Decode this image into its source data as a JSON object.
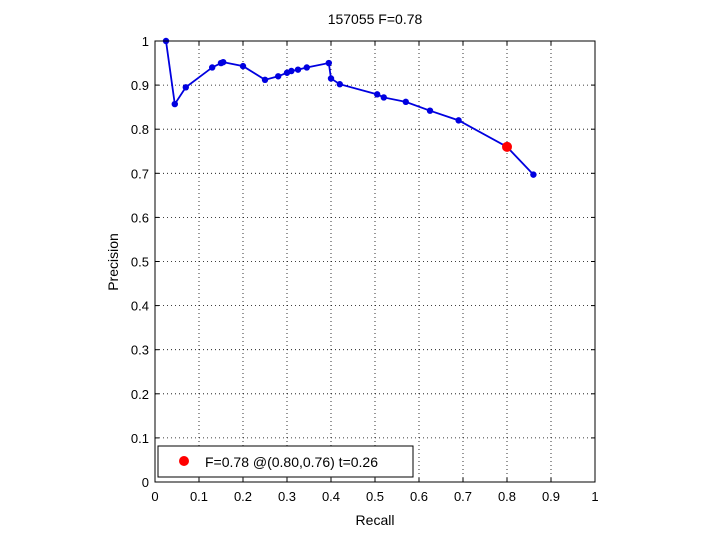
{
  "chart_data": {
    "type": "line",
    "title": "157055 F=0.78",
    "xlabel": "Recall",
    "ylabel": "Precision",
    "xlim": [
      0,
      1
    ],
    "ylim": [
      0,
      1
    ],
    "xticks": [
      "0",
      "0.1",
      "0.2",
      "0.3",
      "0.4",
      "0.5",
      "0.6",
      "0.7",
      "0.8",
      "0.9",
      "1"
    ],
    "yticks": [
      "0",
      "0.1",
      "0.2",
      "0.3",
      "0.4",
      "0.5",
      "0.6",
      "0.7",
      "0.8",
      "0.9",
      "1"
    ],
    "grid": true,
    "grid_style": "dotted",
    "series": [
      {
        "color": "#0000e0",
        "marker": "circle",
        "points": [
          [
            0.025,
            1.0
          ],
          [
            0.045,
            0.857
          ],
          [
            0.07,
            0.895
          ],
          [
            0.13,
            0.94
          ],
          [
            0.15,
            0.95
          ],
          [
            0.155,
            0.952
          ],
          [
            0.2,
            0.943
          ],
          [
            0.25,
            0.912
          ],
          [
            0.28,
            0.92
          ],
          [
            0.3,
            0.928
          ],
          [
            0.31,
            0.932
          ],
          [
            0.325,
            0.935
          ],
          [
            0.345,
            0.94
          ],
          [
            0.395,
            0.95
          ],
          [
            0.4,
            0.915
          ],
          [
            0.42,
            0.902
          ],
          [
            0.505,
            0.879
          ],
          [
            0.52,
            0.872
          ],
          [
            0.57,
            0.862
          ],
          [
            0.625,
            0.842
          ],
          [
            0.69,
            0.82
          ],
          [
            0.8,
            0.76
          ],
          [
            0.86,
            0.697
          ]
        ]
      }
    ],
    "highlight_point": {
      "x": 0.8,
      "y": 0.76,
      "color": "#ff0000"
    },
    "legend": {
      "position": "bottom-left",
      "entries": [
        {
          "label": "F=0.78 @(0.80,0.76) t=0.26",
          "color": "#ff0000"
        }
      ]
    }
  }
}
